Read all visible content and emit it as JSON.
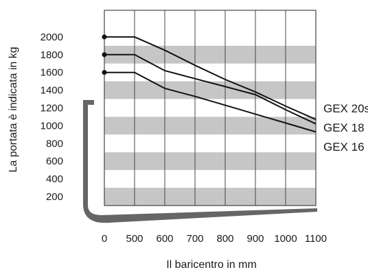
{
  "chart_data": {
    "type": "line",
    "xlabel": "Il baricentro in mm",
    "ylabel": "La portata è indicata in kg",
    "x_ticks": [
      "0",
      "500",
      "600",
      "700",
      "800",
      "900",
      "1000",
      "1100"
    ],
    "y_ticks": [
      "200",
      "400",
      "600",
      "800",
      "1000",
      "1200",
      "1400",
      "1600",
      "1800",
      "2000"
    ],
    "x_positions": [
      400,
      500,
      600,
      700,
      800,
      900,
      1000,
      1100
    ],
    "xlim": [
      400,
      1100
    ],
    "ylim": [
      100,
      2300
    ],
    "grid": "horizontal bands, vertical lines",
    "legend_position": "right",
    "series": [
      {
        "name": "GEX 20s",
        "x": [
          400,
          500,
          600,
          700,
          800,
          900,
          1000,
          1100
        ],
        "y": [
          2000,
          2000,
          1850,
          1680,
          1520,
          1380,
          1220,
          1070
        ]
      },
      {
        "name": "GEX 18",
        "x": [
          400,
          500,
          600,
          700,
          800,
          900,
          1000,
          1100
        ],
        "y": [
          1800,
          1800,
          1620,
          1530,
          1440,
          1350,
          1180,
          1020
        ]
      },
      {
        "name": "GEX 16",
        "x": [
          400,
          500,
          600,
          700,
          800,
          900,
          1000,
          1100
        ],
        "y": [
          1600,
          1600,
          1420,
          1330,
          1230,
          1130,
          1030,
          930
        ]
      }
    ],
    "colors": {
      "line": "#111111",
      "band": "#c6c6c6",
      "fork": "#666666"
    }
  }
}
